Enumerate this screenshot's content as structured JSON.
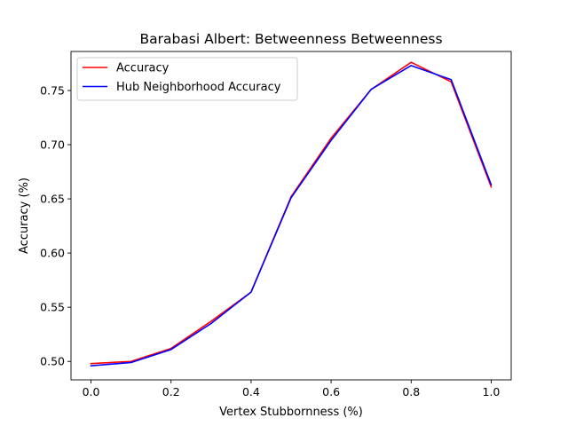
{
  "chart_data": {
    "type": "line",
    "title": "Barabasi Albert: Betweenness Betweenness",
    "xlabel": "Vertex Stubbornness (%)",
    "ylabel": "Accuracy (%)",
    "x": [
      0.0,
      0.1,
      0.2,
      0.3,
      0.4,
      0.5,
      0.6,
      0.7,
      0.8,
      0.9,
      1.0
    ],
    "xlim": [
      -0.05,
      1.05
    ],
    "ylim": [
      0.483,
      0.786
    ],
    "xticks": [
      "0.0",
      "0.2",
      "0.4",
      "0.6",
      "0.8",
      "1.0"
    ],
    "yticks": [
      "0.50",
      "0.55",
      "0.60",
      "0.65",
      "0.70",
      "0.75"
    ],
    "grid": false,
    "legend_position": "upper left",
    "series": [
      {
        "name": "Accuracy",
        "color": "#ff0000",
        "values": [
          0.498,
          0.5,
          0.512,
          0.537,
          0.564,
          0.652,
          0.706,
          0.751,
          0.776,
          0.758,
          0.661
        ]
      },
      {
        "name": "Hub Neighborhood Accuracy",
        "color": "#0000ff",
        "values": [
          0.496,
          0.499,
          0.511,
          0.535,
          0.564,
          0.651,
          0.704,
          0.751,
          0.773,
          0.76,
          0.663
        ]
      }
    ]
  }
}
